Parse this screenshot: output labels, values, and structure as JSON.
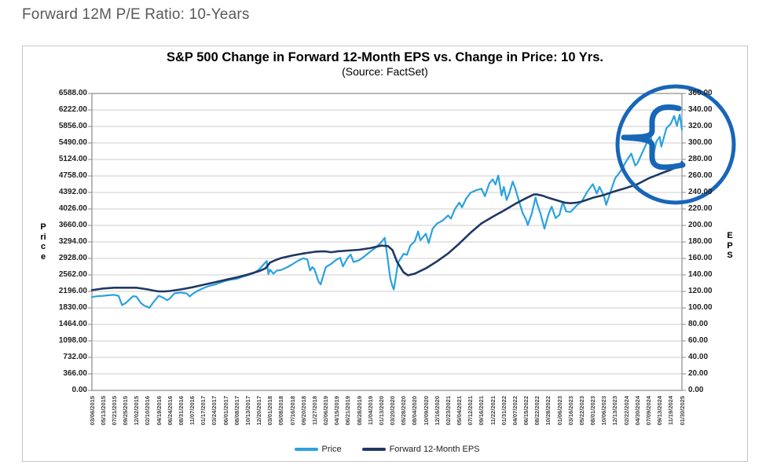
{
  "page": {
    "title": "Forward 12M P/E Ratio: 10-Years"
  },
  "chart_data": {
    "type": "line",
    "title": "S&P 500 Change in Forward 12-Month EPS vs. Change in Price: 10 Yrs.",
    "subtitle": "(Source: FactSet)",
    "grid": "horizontal",
    "grid_color": "#CDCDCD",
    "axis_color": "#8A8A8A",
    "legend_position": "bottom",
    "left_axis": {
      "label": "Price",
      "min": 0,
      "max": 6588,
      "tick_step": 366,
      "ticks": [
        "6588.00",
        "6222.00",
        "5856.00",
        "5490.00",
        "5124.00",
        "4758.00",
        "4392.00",
        "4026.00",
        "3660.00",
        "3294.00",
        "2928.00",
        "2562.00",
        "2196.00",
        "1830.00",
        "1464.00",
        "1098.00",
        "732.00",
        "366.00",
        "0.00"
      ]
    },
    "right_axis": {
      "label": "EPS",
      "min": 0,
      "max": 360,
      "tick_step": 20,
      "ticks": [
        "360.00",
        "340.00",
        "320.00",
        "300.00",
        "280.00",
        "260.00",
        "240.00",
        "220.00",
        "200.00",
        "180.00",
        "160.00",
        "140.00",
        "120.00",
        "100.00",
        "80.00",
        "60.00",
        "40.00",
        "20.00",
        "0.00"
      ]
    },
    "x_labels": [
      "03/06/2015",
      "05/13/2015",
      "07/21/2015",
      "09/25/2015",
      "12/02/2015",
      "02/10/2016",
      "04/19/2016",
      "06/24/2016",
      "08/31/2016",
      "11/07/2016",
      "01/17/2017",
      "03/24/2017",
      "06/01/2017",
      "08/08/2017",
      "10/13/2017",
      "12/20/2017",
      "03/01/2018",
      "05/08/2018",
      "07/16/2018",
      "09/20/2018",
      "11/27/2018",
      "02/06/2019",
      "04/15/2019",
      "06/21/2019",
      "08/28/2019",
      "11/04/2019",
      "01/13/2020",
      "03/20/2020",
      "05/28/2020",
      "08/04/2020",
      "10/09/2020",
      "12/16/2020",
      "02/23/2021",
      "05/04/2021",
      "07/12/2021",
      "09/16/2021",
      "11/22/2021",
      "01/31/2022",
      "04/07/2022",
      "06/15/2022",
      "08/22/2022",
      "10/28/2022",
      "01/06/2023",
      "03/16/2023",
      "05/22/2023",
      "08/01/2023",
      "10/06/2023",
      "12/13/2023",
      "02/22/2024",
      "04/30/2024",
      "07/09/2024",
      "09/13/2024",
      "11/19/2024",
      "01/30/2025"
    ],
    "series": [
      {
        "name": "Price",
        "slug": "price-line",
        "axis": "left",
        "color": "#2BA2DF",
        "width": 2.2,
        "points": [
          [
            0,
            2071
          ],
          [
            0.5,
            2090
          ],
          [
            1,
            2098
          ],
          [
            1.5,
            2110
          ],
          [
            2,
            2119
          ],
          [
            2.4,
            2096
          ],
          [
            2.7,
            1893
          ],
          [
            3,
            1931
          ],
          [
            3.4,
            2021
          ],
          [
            3.7,
            2089
          ],
          [
            4,
            2080
          ],
          [
            4.4,
            1940
          ],
          [
            4.7,
            1880
          ],
          [
            5,
            1852
          ],
          [
            5.15,
            1829
          ],
          [
            5.5,
            1948
          ],
          [
            6,
            2100
          ],
          [
            6.4,
            2057
          ],
          [
            6.75,
            2001
          ],
          [
            7,
            2037
          ],
          [
            7.4,
            2152
          ],
          [
            8,
            2171
          ],
          [
            8.5,
            2151
          ],
          [
            8.8,
            2085
          ],
          [
            9,
            2132
          ],
          [
            9.4,
            2198
          ],
          [
            10,
            2268
          ],
          [
            10.5,
            2316
          ],
          [
            11,
            2344
          ],
          [
            11.5,
            2388
          ],
          [
            12,
            2430
          ],
          [
            12.5,
            2460
          ],
          [
            13,
            2475
          ],
          [
            13.5,
            2519
          ],
          [
            14,
            2553
          ],
          [
            14.5,
            2599
          ],
          [
            15,
            2679
          ],
          [
            15.4,
            2786
          ],
          [
            15.7,
            2873
          ],
          [
            15.85,
            2581
          ],
          [
            16,
            2678
          ],
          [
            16.3,
            2588
          ],
          [
            16.6,
            2656
          ],
          [
            17,
            2672
          ],
          [
            17.5,
            2728
          ],
          [
            18,
            2798
          ],
          [
            18.5,
            2875
          ],
          [
            19,
            2931
          ],
          [
            19.35,
            2905
          ],
          [
            19.6,
            2658
          ],
          [
            19.8,
            2737
          ],
          [
            20,
            2682
          ],
          [
            20.35,
            2417
          ],
          [
            20.55,
            2351
          ],
          [
            21,
            2732
          ],
          [
            21.5,
            2810
          ],
          [
            22,
            2906
          ],
          [
            22.3,
            2940
          ],
          [
            22.55,
            2752
          ],
          [
            23,
            2950
          ],
          [
            23.25,
            3014
          ],
          [
            23.5,
            2847
          ],
          [
            24,
            2888
          ],
          [
            24.5,
            2978
          ],
          [
            25,
            3078
          ],
          [
            25.5,
            3169
          ],
          [
            26,
            3288
          ],
          [
            26.3,
            3386
          ],
          [
            26.55,
            2954
          ],
          [
            26.8,
            2481
          ],
          [
            27,
            2305
          ],
          [
            27.12,
            2237
          ],
          [
            27.5,
            2837
          ],
          [
            28,
            3030
          ],
          [
            28.3,
            3009
          ],
          [
            28.6,
            3215
          ],
          [
            29,
            3306
          ],
          [
            29.3,
            3527
          ],
          [
            29.5,
            3331
          ],
          [
            30,
            3477
          ],
          [
            30.25,
            3270
          ],
          [
            30.6,
            3585
          ],
          [
            31,
            3701
          ],
          [
            31.5,
            3768
          ],
          [
            32,
            3881
          ],
          [
            32.25,
            3811
          ],
          [
            32.6,
            4019
          ],
          [
            33,
            4165
          ],
          [
            33.25,
            4063
          ],
          [
            33.6,
            4247
          ],
          [
            34,
            4384
          ],
          [
            34.5,
            4441
          ],
          [
            35,
            4474
          ],
          [
            35.3,
            4307
          ],
          [
            35.7,
            4596
          ],
          [
            36,
            4683
          ],
          [
            36.25,
            4568
          ],
          [
            36.5,
            4766
          ],
          [
            36.8,
            4326
          ],
          [
            37,
            4516
          ],
          [
            37.25,
            4225
          ],
          [
            37.5,
            4384
          ],
          [
            37.8,
            4631
          ],
          [
            38,
            4500
          ],
          [
            38.4,
            4170
          ],
          [
            38.7,
            3930
          ],
          [
            39,
            3790
          ],
          [
            39.15,
            3667
          ],
          [
            39.5,
            3912
          ],
          [
            39.85,
            4280
          ],
          [
            40,
            4138
          ],
          [
            40.3,
            3924
          ],
          [
            40.65,
            3586
          ],
          [
            41,
            3901
          ],
          [
            41.3,
            4076
          ],
          [
            41.65,
            3822
          ],
          [
            42,
            3895
          ],
          [
            42.3,
            4179
          ],
          [
            42.6,
            3970
          ],
          [
            43,
            3960
          ],
          [
            43.5,
            4090
          ],
          [
            44,
            4193
          ],
          [
            44.5,
            4410
          ],
          [
            45,
            4577
          ],
          [
            45.35,
            4370
          ],
          [
            45.6,
            4515
          ],
          [
            46,
            4309
          ],
          [
            46.2,
            4117
          ],
          [
            46.6,
            4415
          ],
          [
            47,
            4707
          ],
          [
            47.5,
            4868
          ],
          [
            48,
            5087
          ],
          [
            48.45,
            5254
          ],
          [
            48.8,
            4990
          ],
          [
            49,
            5036
          ],
          [
            49.5,
            5308
          ],
          [
            50,
            5577
          ],
          [
            50.2,
            5667
          ],
          [
            50.4,
            5186
          ],
          [
            50.7,
            5520
          ],
          [
            51,
            5626
          ],
          [
            51.15,
            5408
          ],
          [
            51.6,
            5815
          ],
          [
            52,
            5917
          ],
          [
            52.3,
            6090
          ],
          [
            52.55,
            5868
          ],
          [
            52.8,
            6118
          ],
          [
            53,
            5780
          ]
        ]
      },
      {
        "name": "Forward 12-Month EPS",
        "slug": "eps-line",
        "axis": "right",
        "color": "#203864",
        "width": 2.6,
        "points": [
          [
            0,
            121.5
          ],
          [
            1,
            123.5
          ],
          [
            2,
            124.5
          ],
          [
            3,
            124.5
          ],
          [
            4,
            124.5
          ],
          [
            5,
            122.5
          ],
          [
            5.5,
            121
          ],
          [
            6,
            120
          ],
          [
            6.5,
            120
          ],
          [
            7,
            120.5
          ],
          [
            8,
            122.5
          ],
          [
            9,
            125
          ],
          [
            10,
            128
          ],
          [
            11,
            131
          ],
          [
            12,
            134
          ],
          [
            13,
            137
          ],
          [
            14,
            140.5
          ],
          [
            15,
            144.5
          ],
          [
            15.6,
            148
          ],
          [
            16,
            155
          ],
          [
            16.5,
            158
          ],
          [
            17,
            160.5
          ],
          [
            18,
            163.5
          ],
          [
            19,
            166
          ],
          [
            20,
            168
          ],
          [
            20.5,
            168.5
          ],
          [
            21,
            168.5
          ],
          [
            21.5,
            167.5
          ],
          [
            22,
            168.5
          ],
          [
            23,
            169.5
          ],
          [
            24,
            170.5
          ],
          [
            25,
            172.5
          ],
          [
            26,
            175.5
          ],
          [
            26.6,
            175
          ],
          [
            27,
            170
          ],
          [
            27.4,
            156
          ],
          [
            28,
            143
          ],
          [
            28.4,
            139.5
          ],
          [
            29,
            141.5
          ],
          [
            30,
            148
          ],
          [
            31,
            156.5
          ],
          [
            32,
            166
          ],
          [
            33,
            178
          ],
          [
            34,
            191
          ],
          [
            35,
            202.5
          ],
          [
            36,
            210.5
          ],
          [
            37,
            218
          ],
          [
            38,
            226
          ],
          [
            39,
            233
          ],
          [
            39.7,
            237.5
          ],
          [
            40,
            237.5
          ],
          [
            40.5,
            236
          ],
          [
            41,
            233.5
          ],
          [
            42,
            229.5
          ],
          [
            42.5,
            227.5
          ],
          [
            43,
            227
          ],
          [
            43.5,
            227.5
          ],
          [
            44,
            229
          ],
          [
            45,
            233.5
          ],
          [
            46,
            237
          ],
          [
            47,
            241.5
          ],
          [
            48,
            245.5
          ],
          [
            49,
            250
          ],
          [
            50,
            257
          ],
          [
            51,
            262.5
          ],
          [
            52,
            267.5
          ],
          [
            52.6,
            271
          ],
          [
            52.9,
            272
          ],
          [
            53,
            277
          ]
        ]
      }
    ],
    "annotation": {
      "shape": "hand-drawn circle with left-pointing brace over chart end",
      "color": "#1766B8"
    }
  }
}
